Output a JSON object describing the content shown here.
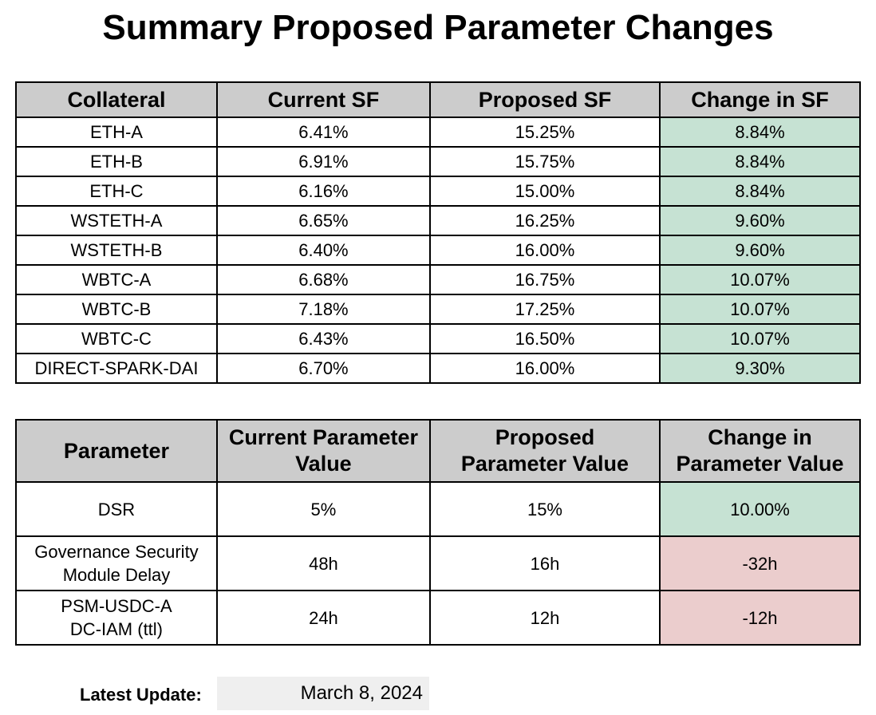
{
  "title": "Summary Proposed Parameter Changes",
  "sf_table": {
    "headers": [
      "Collateral",
      "Current SF",
      "Proposed SF",
      "Change in SF"
    ],
    "rows": [
      [
        "ETH-A",
        "6.41%",
        "15.25%",
        "8.84%"
      ],
      [
        "ETH-B",
        "6.91%",
        "15.75%",
        "8.84%"
      ],
      [
        "ETH-C",
        "6.16%",
        "15.00%",
        "8.84%"
      ],
      [
        "WSTETH-A",
        "6.65%",
        "16.25%",
        "9.60%"
      ],
      [
        "WSTETH-B",
        "6.40%",
        "16.00%",
        "9.60%"
      ],
      [
        "WBTC-A",
        "6.68%",
        "16.75%",
        "10.07%"
      ],
      [
        "WBTC-B",
        "7.18%",
        "17.25%",
        "10.07%"
      ],
      [
        "WBTC-C",
        "6.43%",
        "16.50%",
        "10.07%"
      ],
      [
        "DIRECT-SPARK-DAI",
        "6.70%",
        "16.00%",
        "9.30%"
      ]
    ]
  },
  "param_table": {
    "headers": [
      [
        "Parameter"
      ],
      [
        "Current Parameter",
        "Value"
      ],
      [
        "Proposed",
        "Parameter Value"
      ],
      [
        "Change in",
        "Parameter Value"
      ]
    ],
    "rows": [
      {
        "name": [
          "DSR"
        ],
        "current": "5%",
        "proposed": "15%",
        "change": "10.00%"
      },
      {
        "name": [
          "Governance Security",
          "Module Delay"
        ],
        "current": "48h",
        "proposed": "16h",
        "change": "-32h"
      },
      {
        "name": [
          "PSM-USDC-A",
          "DC-IAM (ttl)"
        ],
        "current": "24h",
        "proposed": "12h",
        "change": "-12h"
      }
    ]
  },
  "latest_update": {
    "label": "Latest Update:",
    "value": "March 8, 2024"
  },
  "colors": {
    "header_bg": "#cccccc",
    "positive_change_bg": "#c6e2d3",
    "negative_change_bg": "#ebcdcd",
    "update_value_bg": "#efefef"
  }
}
